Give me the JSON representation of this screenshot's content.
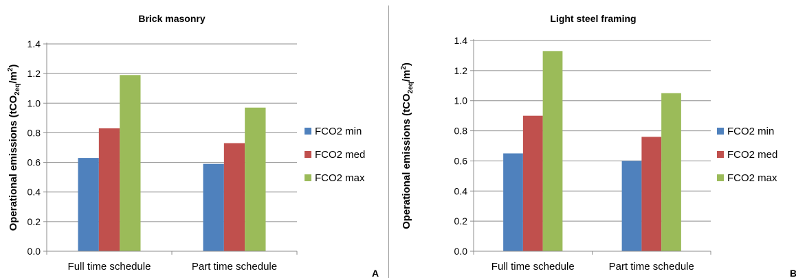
{
  "chart_data": [
    {
      "type": "bar",
      "title": "Brick masonry",
      "ylabel_main": "Operational emissions (tCO",
      "ylabel_sub": "2eq",
      "ylabel_slash": "/m",
      "ylabel_sup": "2",
      "ylabel_end": ")",
      "categories": [
        "Full time schedule",
        "Part time schedule"
      ],
      "series": [
        {
          "name": "FCO2 min",
          "color": "#4f81bd",
          "values": [
            0.63,
            0.59
          ]
        },
        {
          "name": "FCO2 med",
          "color": "#c0504d",
          "values": [
            0.83,
            0.73
          ]
        },
        {
          "name": "FCO2 max",
          "color": "#9bbb59",
          "values": [
            1.19,
            0.97
          ]
        }
      ],
      "ylim": [
        0,
        1.4
      ],
      "yticks": [
        "0.0",
        "0.2",
        "0.4",
        "0.6",
        "0.8",
        "1.0",
        "1.2",
        "1.4"
      ],
      "grid": true,
      "legend_position": "right",
      "panel_label": "A"
    },
    {
      "type": "bar",
      "title": "Light steel framing",
      "ylabel_main": "Operational emissions (tCO",
      "ylabel_sub": "2eq",
      "ylabel_slash": "/m",
      "ylabel_sup": "2",
      "ylabel_end": ")",
      "categories": [
        "Full time schedule",
        "Part time schedule"
      ],
      "series": [
        {
          "name": "FCO2 min",
          "color": "#4f81bd",
          "values": [
            0.65,
            0.6
          ]
        },
        {
          "name": "FCO2 med",
          "color": "#c0504d",
          "values": [
            0.9,
            0.76
          ]
        },
        {
          "name": "FCO2 max",
          "color": "#9bbb59",
          "values": [
            1.33,
            1.05
          ]
        }
      ],
      "ylim": [
        0,
        1.4
      ],
      "yticks": [
        "0.0",
        "0.2",
        "0.4",
        "0.6",
        "0.8",
        "1.0",
        "1.2",
        "1.4"
      ],
      "grid": true,
      "legend_position": "right",
      "panel_label": "B"
    }
  ]
}
